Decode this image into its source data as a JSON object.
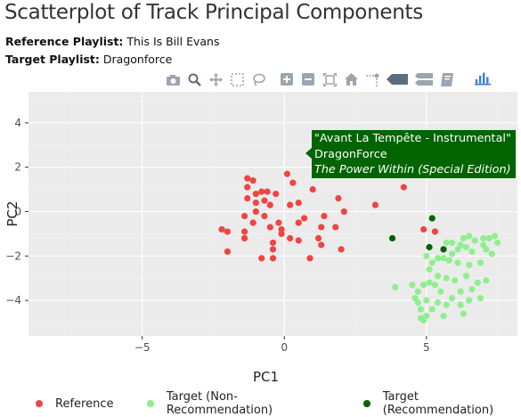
{
  "page": {
    "title": "Scatterplot of Track Principal Components",
    "reference_label": "Reference Playlist:",
    "reference_value": "This Is Bill Evans",
    "target_label": "Target Playlist:",
    "target_value": "Dragonforce"
  },
  "toolbar": {
    "items": [
      {
        "name": "camera-icon"
      },
      {
        "name": "zoom-icon"
      },
      {
        "name": "pan-icon"
      },
      {
        "name": "box-select-icon"
      },
      {
        "name": "lasso-select-icon"
      },
      {
        "name": "zoom-in-icon"
      },
      {
        "name": "zoom-out-icon"
      },
      {
        "name": "autoscale-icon"
      },
      {
        "name": "reset-axes-icon"
      },
      {
        "name": "spike-lines-icon"
      },
      {
        "name": "hover-closest-icon"
      },
      {
        "name": "hover-compare-icon"
      },
      {
        "name": "edit-chart-icon"
      },
      {
        "name": "plotly-logo-icon"
      }
    ]
  },
  "tooltip": {
    "line1": "\"Avant La Tempête - Instrumental\"",
    "line2": "DragonForce",
    "line3": "The Power Within (Special Edition)"
  },
  "colors": {
    "reference": "#ef4444",
    "target_non": "#90ee90",
    "target_rec": "#006400",
    "bg": "#ebebeb"
  },
  "chart_data": {
    "type": "scatter",
    "title": "",
    "xlabel": "PC1",
    "ylabel": "PC2",
    "xlim": [
      -9.0,
      8.2
    ],
    "ylim": [
      -5.6,
      5.4
    ],
    "xticks": [
      -5,
      0,
      5
    ],
    "yticks": [
      4,
      2,
      0,
      -2,
      -4
    ],
    "grid": true,
    "legend_position": "bottom",
    "series": [
      {
        "name": "Reference",
        "color": "#ef4444",
        "points": [
          [
            1.1,
            2.4
          ],
          [
            0.1,
            1.7
          ],
          [
            1.9,
            2.2
          ],
          [
            4.2,
            1.1
          ],
          [
            3.2,
            0.3
          ],
          [
            2.1,
            0.0
          ],
          [
            1.9,
            0.6
          ],
          [
            1.4,
            -0.2
          ],
          [
            0.7,
            -0.3
          ],
          [
            0.3,
            1.3
          ],
          [
            -1.3,
            1.5
          ],
          [
            -1.1,
            1.4
          ],
          [
            -1.3,
            1.1
          ],
          [
            -1.0,
            0.8
          ],
          [
            -0.8,
            0.9
          ],
          [
            -0.6,
            0.9
          ],
          [
            -0.3,
            0.8
          ],
          [
            -1.3,
            0.6
          ],
          [
            -1.0,
            0.4
          ],
          [
            -0.7,
            0.5
          ],
          [
            -0.5,
            0.3
          ],
          [
            0.2,
            0.3
          ],
          [
            0.5,
            0.4
          ],
          [
            1.0,
            1.0
          ],
          [
            -1.4,
            -0.2
          ],
          [
            -1.0,
            0.0
          ],
          [
            -0.7,
            -0.2
          ],
          [
            -0.2,
            -0.5
          ],
          [
            0.5,
            -0.5
          ],
          [
            -1.1,
            -0.5
          ],
          [
            -1.4,
            -0.9
          ],
          [
            -2.0,
            -0.9
          ],
          [
            -2.2,
            -0.8
          ],
          [
            -1.4,
            -1.2
          ],
          [
            -0.5,
            -0.7
          ],
          [
            -0.1,
            -0.8
          ],
          [
            -0.1,
            -1.0
          ],
          [
            0.2,
            -1.2
          ],
          [
            0.5,
            -1.3
          ],
          [
            1.3,
            -0.7
          ],
          [
            1.8,
            -0.7
          ],
          [
            1.2,
            -1.2
          ],
          [
            1.3,
            -1.5
          ],
          [
            -0.4,
            -1.4
          ],
          [
            -0.4,
            -1.7
          ],
          [
            -2.0,
            -1.8
          ],
          [
            -0.8,
            -2.1
          ],
          [
            -0.4,
            -2.1
          ],
          [
            0.9,
            -2.1
          ],
          [
            2.0,
            -1.7
          ],
          [
            4.9,
            -0.8
          ],
          [
            5.3,
            -0.9
          ]
        ]
      },
      {
        "name": "Target (Non-Recommendation)",
        "color": "#90ee90",
        "points": [
          [
            6.3,
            -1.2
          ],
          [
            6.5,
            -1.1
          ],
          [
            7.0,
            -1.2
          ],
          [
            7.2,
            -1.2
          ],
          [
            7.4,
            -1.1
          ],
          [
            7.5,
            -1.4
          ],
          [
            7.0,
            -1.5
          ],
          [
            6.7,
            -1.3
          ],
          [
            6.4,
            -1.6
          ],
          [
            6.2,
            -1.5
          ],
          [
            5.9,
            -1.4
          ],
          [
            5.7,
            -1.4
          ],
          [
            5.9,
            -1.9
          ],
          [
            6.1,
            -1.7
          ],
          [
            6.6,
            -1.8
          ],
          [
            7.1,
            -1.7
          ],
          [
            7.3,
            -1.9
          ],
          [
            6.9,
            -2.3
          ],
          [
            6.5,
            -2.4
          ],
          [
            6.1,
            -2.3
          ],
          [
            5.8,
            -2.2
          ],
          [
            5.6,
            -2.1
          ],
          [
            5.4,
            -2.1
          ],
          [
            5.2,
            -2.3
          ],
          [
            5.0,
            -2.0
          ],
          [
            5.1,
            -2.6
          ],
          [
            5.4,
            -2.9
          ],
          [
            5.7,
            -3.0
          ],
          [
            6.0,
            -3.1
          ],
          [
            6.4,
            -2.9
          ],
          [
            6.8,
            -3.2
          ],
          [
            7.1,
            -3.1
          ],
          [
            6.6,
            -3.5
          ],
          [
            6.2,
            -3.6
          ],
          [
            5.9,
            -3.9
          ],
          [
            5.5,
            -3.6
          ],
          [
            5.3,
            -3.3
          ],
          [
            5.1,
            -3.2
          ],
          [
            4.9,
            -3.3
          ],
          [
            4.7,
            -3.6
          ],
          [
            4.6,
            -3.9
          ],
          [
            5.0,
            -4.0
          ],
          [
            5.4,
            -4.1
          ],
          [
            5.7,
            -4.2
          ],
          [
            6.2,
            -4.2
          ],
          [
            6.5,
            -4.0
          ],
          [
            6.9,
            -3.9
          ],
          [
            4.8,
            -4.4
          ],
          [
            5.2,
            -4.4
          ],
          [
            5.0,
            -4.7
          ],
          [
            4.8,
            -4.8
          ],
          [
            4.9,
            -4.9
          ],
          [
            5.6,
            -4.7
          ],
          [
            6.3,
            -4.6
          ],
          [
            3.9,
            -3.4
          ],
          [
            4.5,
            -3.3
          ],
          [
            4.7,
            -4.1
          ]
        ]
      },
      {
        "name": "Target (Recommendation)",
        "color": "#006400",
        "points": [
          [
            1.3,
            2.7
          ],
          [
            5.2,
            -0.3
          ],
          [
            3.8,
            -1.2
          ],
          [
            5.1,
            -1.6
          ],
          [
            5.6,
            -1.7
          ]
        ]
      }
    ]
  },
  "legend": {
    "items": [
      {
        "label": "Reference",
        "color": "#ef4444"
      },
      {
        "label": "Target (Non-Recommendation)",
        "color": "#90ee90"
      },
      {
        "label": "Target (Recommendation)",
        "color": "#006400"
      }
    ]
  }
}
